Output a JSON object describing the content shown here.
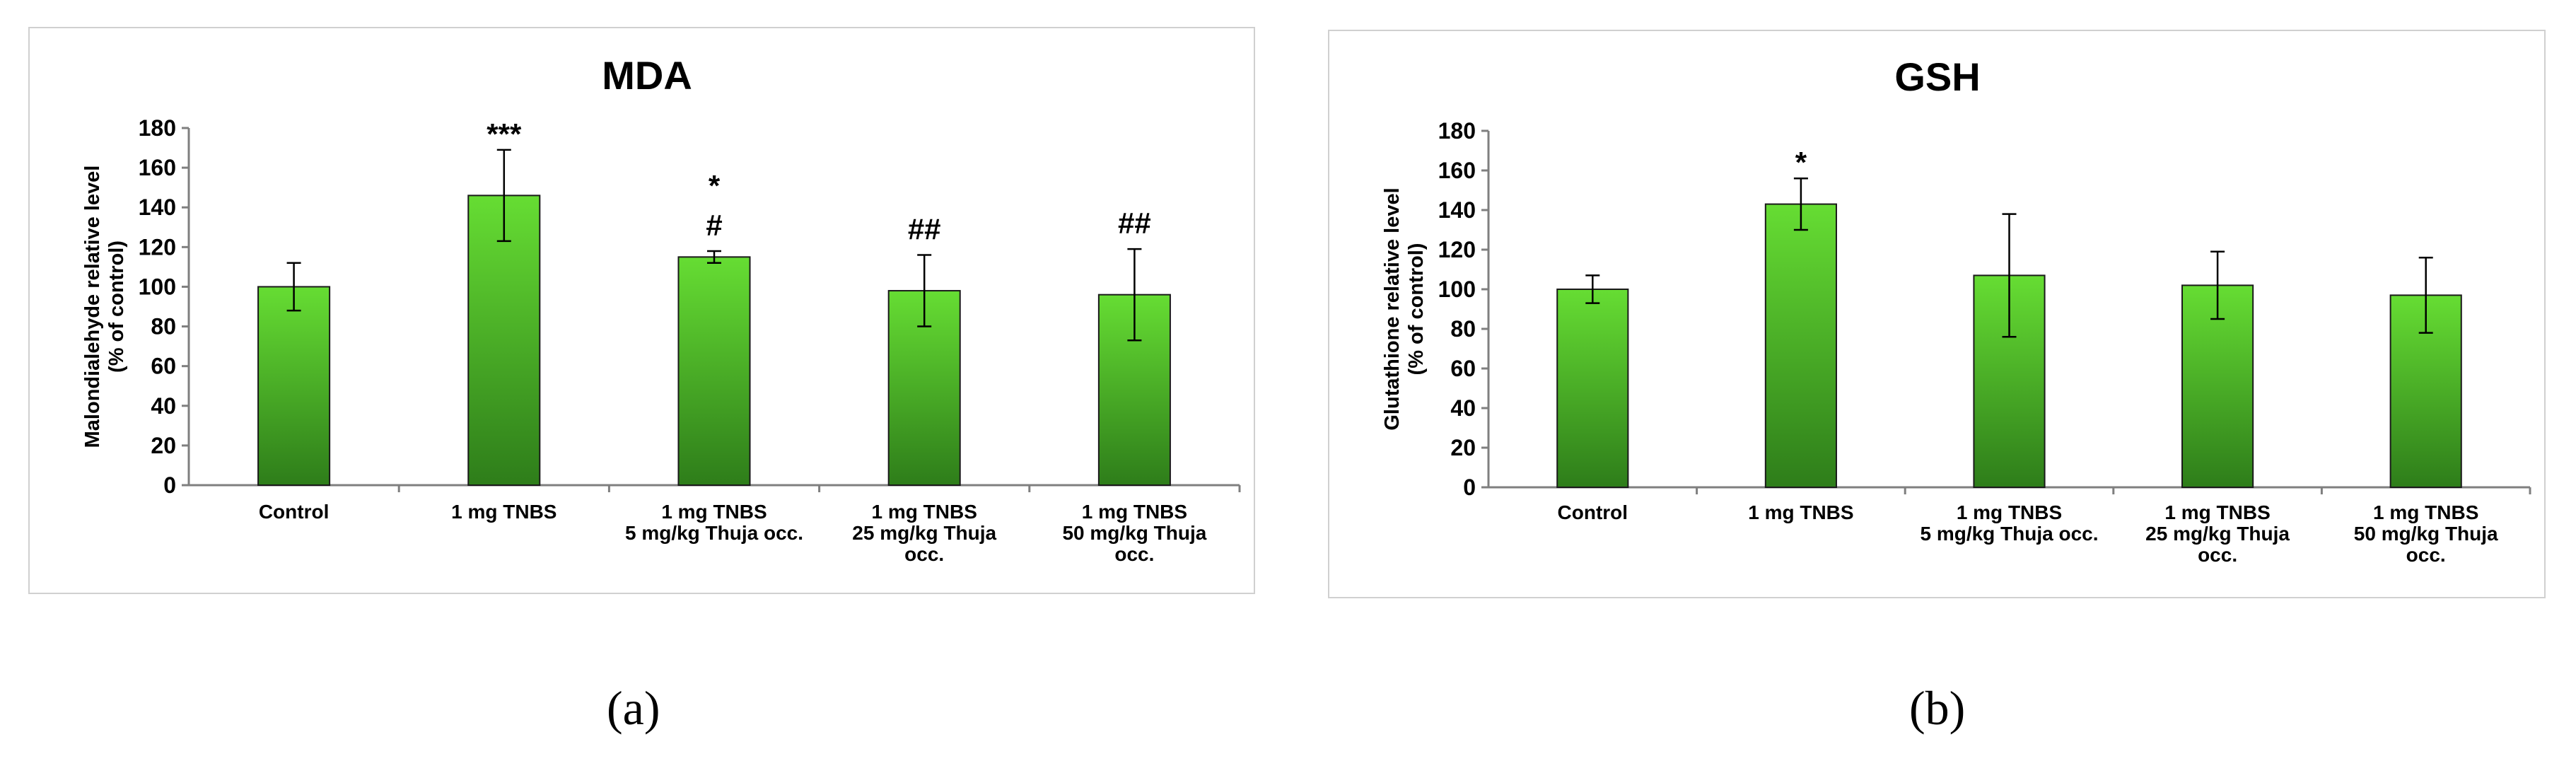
{
  "chart_data": [
    {
      "type": "bar",
      "title": "MDA",
      "ylabel": [
        "Malondialehyde relative level",
        "(% of control)"
      ],
      "ylim": [
        0,
        180
      ],
      "yticks": [
        0,
        20,
        40,
        60,
        80,
        100,
        120,
        140,
        160,
        180
      ],
      "categories": [
        [
          "Control"
        ],
        [
          "1 mg TNBS"
        ],
        [
          "1 mg TNBS",
          "5 mg/kg Thuja occ."
        ],
        [
          "1 mg TNBS",
          "25 mg/kg Thuja",
          "occ."
        ],
        [
          "1 mg TNBS",
          "50 mg/kg Thuja",
          "occ."
        ]
      ],
      "values": [
        100,
        146,
        115,
        98,
        96
      ],
      "errors": [
        12,
        23,
        3,
        18,
        23
      ],
      "annotations": [
        [
          "***"
        ],
        [
          "*",
          "#"
        ],
        [
          "##"
        ],
        [
          "##"
        ]
      ],
      "annotation_bars": [
        1,
        2,
        3,
        4
      ],
      "bar_color_top": "#66dd33",
      "bar_color_bottom": "#2e7d1a",
      "grid": false
    },
    {
      "type": "bar",
      "title": "GSH",
      "ylabel": [
        "Glutathione relative level",
        "(% of control)"
      ],
      "ylim": [
        0,
        180
      ],
      "yticks": [
        0,
        20,
        40,
        60,
        80,
        100,
        120,
        140,
        160,
        180
      ],
      "categories": [
        [
          "Control"
        ],
        [
          "1 mg TNBS"
        ],
        [
          "1 mg TNBS",
          "5 mg/kg Thuja occ."
        ],
        [
          "1 mg TNBS",
          "25 mg/kg Thuja",
          "occ."
        ],
        [
          "1 mg TNBS",
          "50 mg/kg Thuja",
          "occ."
        ]
      ],
      "values": [
        100,
        143,
        107,
        102,
        97
      ],
      "errors": [
        7,
        13,
        31,
        17,
        19
      ],
      "annotations": [
        [
          "*"
        ]
      ],
      "annotation_bars": [
        1
      ],
      "bar_color_top": "#66dd33",
      "bar_color_bottom": "#2e7d1a",
      "grid": false
    }
  ],
  "panel_labels": [
    "(a)",
    "(b)"
  ]
}
